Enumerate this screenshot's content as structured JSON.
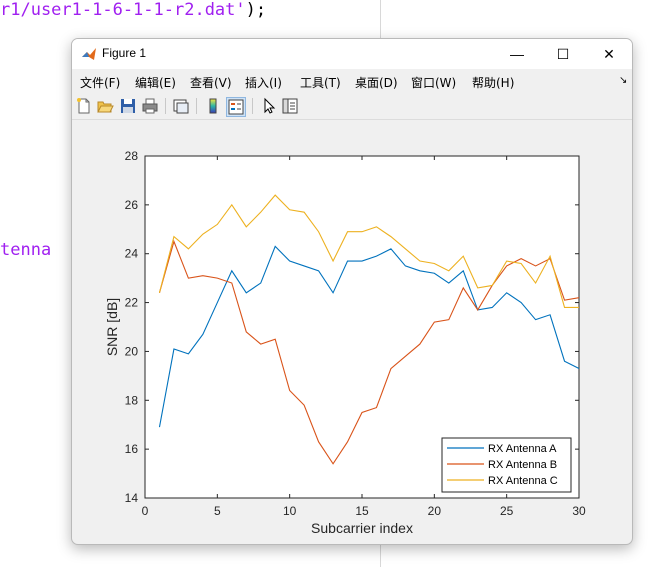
{
  "editor": {
    "code_top_string": "r1/user1-1-6-1-1-r2.dat'",
    "code_top_rest": ");",
    "code_fragment": "tenna"
  },
  "window": {
    "title": "Figure 1",
    "minimize": "—",
    "maximize": "☐",
    "close": "✕"
  },
  "menu": [
    "文件(F)",
    "编辑(E)",
    "查看(V)",
    "插入(I)",
    "工具(T)",
    "桌面(D)",
    "窗口(W)",
    "帮助(H)"
  ],
  "menu_overflow": "↘",
  "toolbar_icons": [
    "new-figure-icon",
    "open-file-icon",
    "save-icon",
    "print-icon",
    "link-plot-icon",
    "colorbar-icon",
    "legend-icon",
    "pointer-icon",
    "property-inspector-icon"
  ],
  "colors": {
    "series_a": "#0072BD",
    "series_b": "#D95319",
    "series_c": "#EDB120"
  },
  "chart_data": {
    "type": "line",
    "xlabel": "Subcarrier index",
    "ylabel": "SNR [dB]",
    "xlim": [
      0,
      30
    ],
    "ylim": [
      14,
      28
    ],
    "xticks": [
      0,
      5,
      10,
      15,
      20,
      25,
      30
    ],
    "yticks": [
      14,
      16,
      18,
      20,
      22,
      24,
      26,
      28
    ],
    "legend_position": "bottom-right",
    "x": [
      1,
      2,
      3,
      4,
      5,
      6,
      7,
      8,
      9,
      10,
      11,
      12,
      13,
      14,
      15,
      16,
      17,
      18,
      19,
      20,
      21,
      22,
      23,
      24,
      25,
      26,
      27,
      28,
      29,
      30
    ],
    "series": [
      {
        "name": "RX Antenna A",
        "values": [
          16.9,
          20.1,
          19.9,
          20.7,
          22.0,
          23.3,
          22.4,
          22.8,
          24.3,
          23.7,
          23.5,
          23.3,
          22.4,
          23.7,
          23.7,
          23.9,
          24.2,
          23.5,
          23.3,
          23.2,
          22.8,
          23.3,
          21.7,
          21.8,
          22.4,
          22.0,
          21.3,
          21.5,
          19.6,
          19.3
        ]
      },
      {
        "name": "RX Antenna B",
        "values": [
          22.4,
          24.5,
          23.0,
          23.1,
          23.0,
          22.8,
          20.8,
          20.3,
          20.5,
          18.4,
          17.8,
          16.3,
          15.4,
          16.3,
          17.5,
          17.7,
          19.3,
          19.8,
          20.3,
          21.2,
          21.3,
          22.6,
          21.7,
          22.7,
          23.5,
          23.8,
          23.5,
          23.8,
          22.1,
          22.2
        ]
      },
      {
        "name": "RX Antenna C",
        "values": [
          22.4,
          24.7,
          24.2,
          24.8,
          25.2,
          26.0,
          25.1,
          25.7,
          26.4,
          25.8,
          25.7,
          24.9,
          23.7,
          24.9,
          24.9,
          25.1,
          24.7,
          24.2,
          23.7,
          23.6,
          23.3,
          23.9,
          22.6,
          22.7,
          23.7,
          23.6,
          22.8,
          23.9,
          21.8,
          21.8
        ]
      }
    ]
  }
}
